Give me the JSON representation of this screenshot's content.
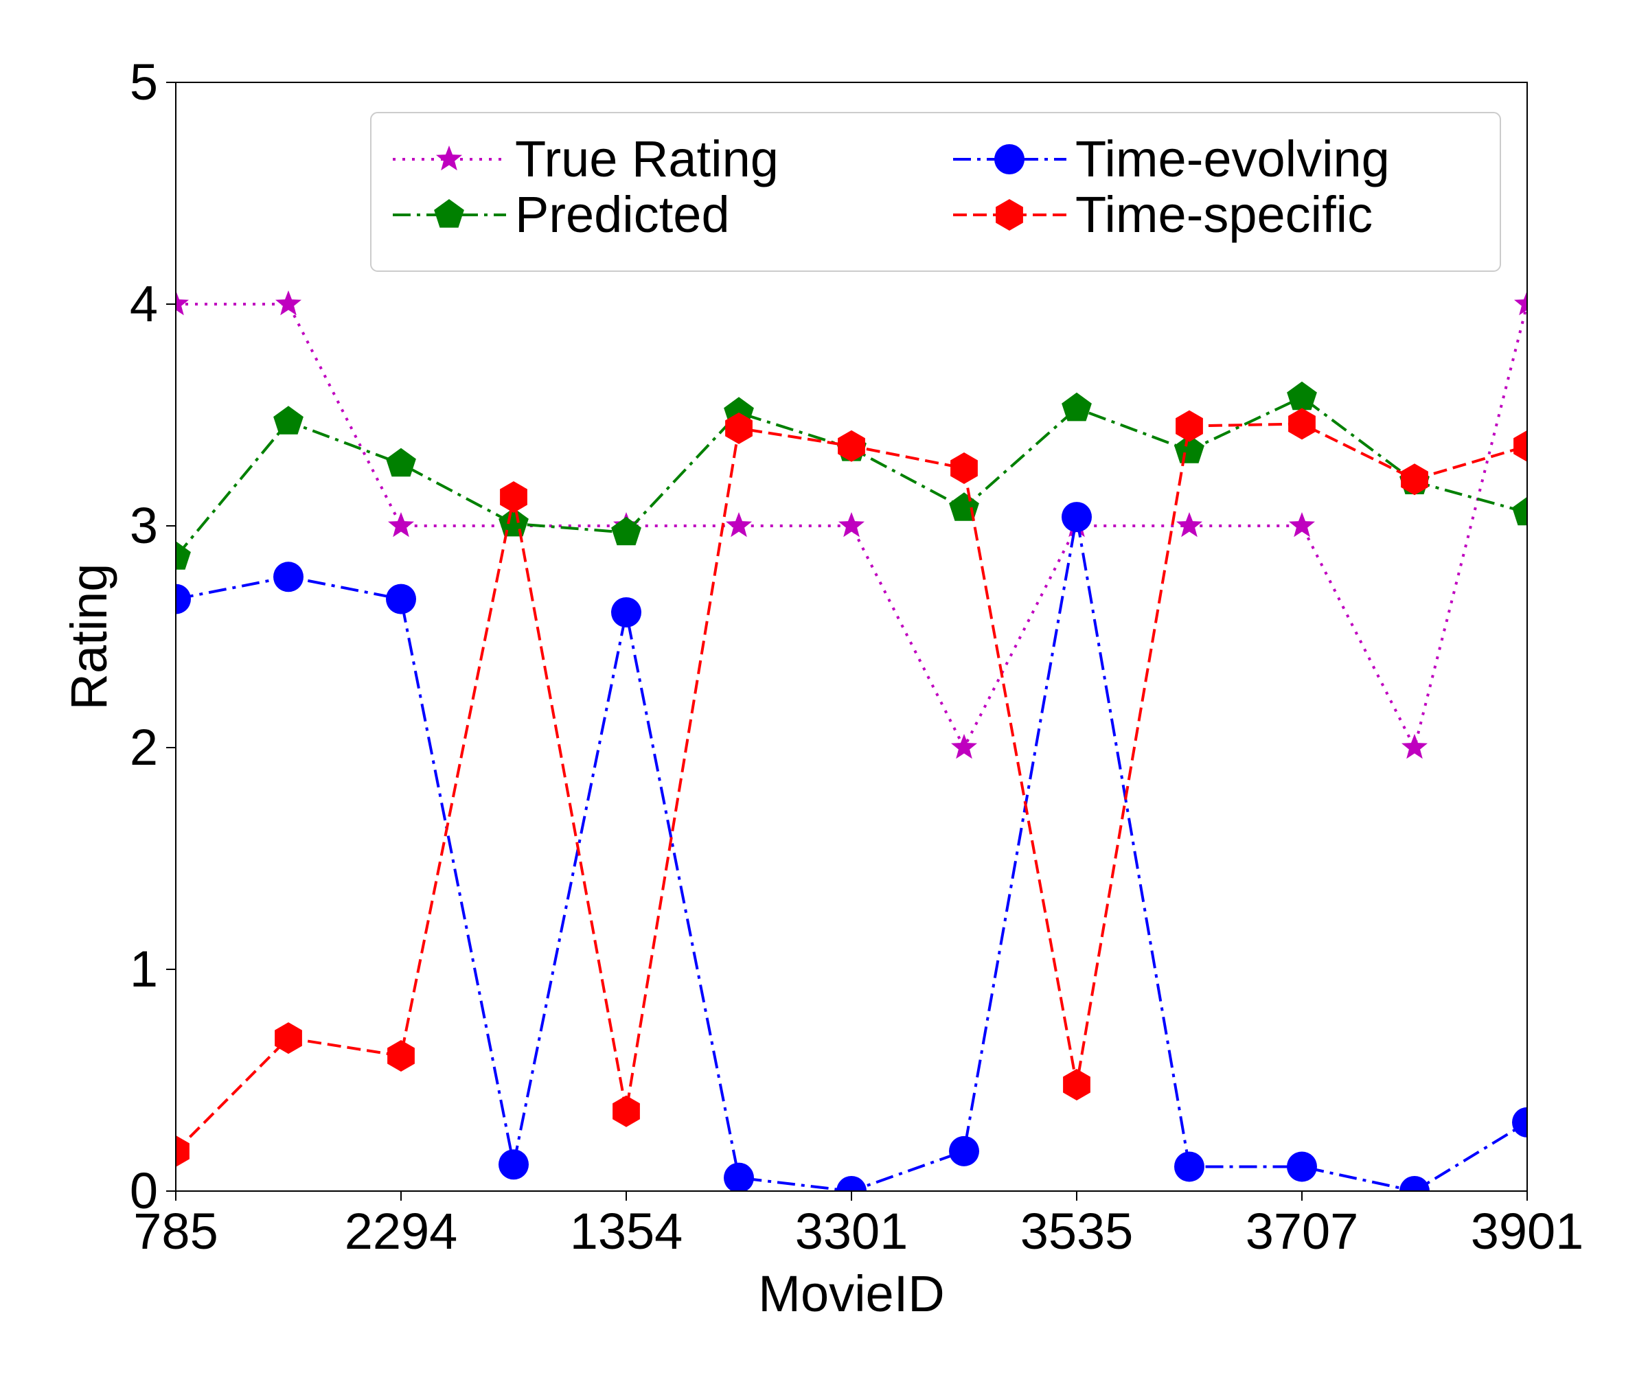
{
  "chart_data": {
    "type": "line",
    "title": "",
    "xlabel": "MovieID",
    "ylabel": "Rating",
    "ylim": [
      0,
      5
    ],
    "xlim": [
      0,
      12
    ],
    "x": [
      0,
      1,
      2,
      3,
      4,
      5,
      6,
      7,
      8,
      9,
      10,
      11,
      12
    ],
    "xticks": [
      {
        "pos": 0,
        "label": "785"
      },
      {
        "pos": 2,
        "label": "2294"
      },
      {
        "pos": 4,
        "label": "1354"
      },
      {
        "pos": 6,
        "label": "3301"
      },
      {
        "pos": 8,
        "label": "3535"
      },
      {
        "pos": 10,
        "label": "3707"
      },
      {
        "pos": 12,
        "label": "3901"
      }
    ],
    "yticks": [
      {
        "pos": 0,
        "label": "0"
      },
      {
        "pos": 1,
        "label": "1"
      },
      {
        "pos": 2,
        "label": "2"
      },
      {
        "pos": 3,
        "label": "3"
      },
      {
        "pos": 4,
        "label": "4"
      },
      {
        "pos": 5,
        "label": "5"
      }
    ],
    "grid": false,
    "legend_position": "top-right",
    "series": [
      {
        "name": "True Rating",
        "id": "true-rating",
        "color": "#bf00bf",
        "marker": "star",
        "line": "dotted",
        "values": [
          4,
          4,
          3,
          3,
          3,
          3,
          3,
          2,
          3,
          3,
          3,
          2,
          4
        ]
      },
      {
        "name": "Predicted",
        "id": "predicted",
        "color": "#008000",
        "marker": "pentagon",
        "line": "dashdot",
        "values": [
          2.86,
          3.47,
          3.28,
          3.01,
          2.97,
          3.51,
          3.35,
          3.08,
          3.53,
          3.34,
          3.58,
          3.2,
          3.06
        ]
      },
      {
        "name": "Time-evolving",
        "id": "time-evolving",
        "color": "#0000ff",
        "marker": "circle",
        "line": "dashdot",
        "values": [
          2.67,
          2.77,
          2.67,
          0.12,
          2.61,
          0.06,
          0.0,
          0.18,
          3.04,
          0.11,
          0.11,
          0.0,
          0.31
        ]
      },
      {
        "name": "Time-specific",
        "id": "time-specific",
        "color": "#ff0000",
        "marker": "hexagon",
        "line": "dashed",
        "values": [
          0.18,
          0.69,
          0.61,
          3.13,
          0.36,
          3.44,
          3.36,
          3.26,
          0.48,
          3.45,
          3.46,
          3.21,
          3.36
        ]
      }
    ]
  }
}
